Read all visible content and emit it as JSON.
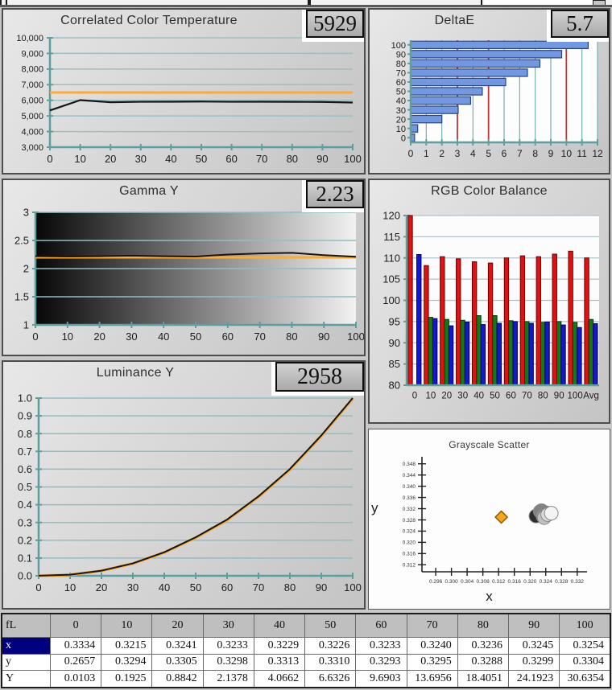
{
  "toolbar": {},
  "chart_data": [
    {
      "id": "cct",
      "type": "line",
      "title": "Correlated Color Temperature",
      "value_box": "5929",
      "x": [
        0,
        10,
        20,
        30,
        40,
        50,
        60,
        70,
        80,
        90,
        100
      ],
      "xticks": [
        0,
        10,
        20,
        30,
        40,
        50,
        60,
        70,
        80,
        90,
        100
      ],
      "xlim": [
        0,
        100
      ],
      "ylim": [
        3000,
        10000
      ],
      "yticks": [
        3000,
        4000,
        5000,
        6000,
        7000,
        8000,
        9000,
        10000
      ],
      "ytick_labels": [
        "3,000",
        "4,000",
        "5,000",
        "6,000",
        "7,000",
        "8,000",
        "9,000",
        "10,000"
      ],
      "grid_color": "#9dbfbf",
      "axis_color": "#5d9e9e",
      "series": [
        {
          "name": "target",
          "color": "#ffab2e",
          "width": 3,
          "values": [
            6500,
            6500,
            6500,
            6500,
            6500,
            6500,
            6500,
            6500,
            6500,
            6500,
            6500
          ]
        },
        {
          "name": "measured",
          "color": "#161616",
          "width": 2.2,
          "values": [
            5350,
            6010,
            5875,
            5905,
            5910,
            5920,
            5905,
            5910,
            5900,
            5895,
            5855
          ]
        }
      ]
    },
    {
      "id": "deltae",
      "type": "hbar",
      "title": "DeltaE",
      "value_box": "5.7",
      "categories": [
        "100",
        "90",
        "80",
        "70",
        "60",
        "50",
        "40",
        "30",
        "20",
        "10",
        "0"
      ],
      "values": [
        11.4,
        9.7,
        8.3,
        7.5,
        6.1,
        4.6,
        3.85,
        3.05,
        2.0,
        0.45,
        0.25
      ],
      "xlim": [
        0,
        12
      ],
      "xticks": [
        0,
        1,
        2,
        3,
        4,
        5,
        6,
        7,
        8,
        9,
        10,
        11,
        12
      ],
      "ref_lines": [
        3,
        5,
        10
      ],
      "ref_color": "#c03636",
      "bar_color": "#7398e2",
      "bar_border": "#2a4480",
      "plot_bg": "#fdfdfd",
      "grid_color": "#76b0b0",
      "axis_color": "#5d9e9e"
    },
    {
      "id": "gamma",
      "type": "line",
      "title": "Gamma Y",
      "value_box": "2.23",
      "x": [
        0,
        10,
        20,
        30,
        40,
        50,
        60,
        70,
        80,
        90,
        100
      ],
      "xticks": [
        0,
        10,
        20,
        30,
        40,
        50,
        60,
        70,
        80,
        90,
        100
      ],
      "xlim": [
        0,
        100
      ],
      "ylim": [
        1,
        3
      ],
      "yticks": [
        1,
        1.5,
        2,
        2.5,
        3
      ],
      "ytick_labels": [
        "1",
        "1.5",
        "2",
        "2.5",
        "3"
      ],
      "grid_color": "#8fc0c0",
      "axis_color": "#5d9e9e",
      "plot_gradient": true,
      "series": [
        {
          "name": "target",
          "color": "#ffab2e",
          "width": 3,
          "values": [
            2.2,
            2.2,
            2.2,
            2.2,
            2.2,
            2.2,
            2.2,
            2.2,
            2.2,
            2.2,
            2.2
          ]
        },
        {
          "name": "measured",
          "color": "#161616",
          "width": 2,
          "values": [
            2.22,
            2.215,
            2.22,
            2.23,
            2.22,
            2.215,
            2.25,
            2.27,
            2.28,
            2.24,
            2.21
          ]
        }
      ]
    },
    {
      "id": "rgb",
      "type": "groupedbar",
      "title": "RGB Color Balance",
      "categories": [
        "0",
        "10",
        "20",
        "30",
        "40",
        "50",
        "60",
        "70",
        "80",
        "90",
        "100",
        "Avg"
      ],
      "ylim": [
        80,
        120
      ],
      "yticks": [
        80,
        85,
        90,
        95,
        100,
        105,
        110,
        115,
        120
      ],
      "grid_color": "#aec4cd",
      "axis_color": "#5d9e9e",
      "plot_bg": "#fcfcfc",
      "series": [
        {
          "name": "red",
          "color": "#dd1212",
          "border": "#6e0000",
          "values": [
            120,
            108.2,
            110.3,
            109.8,
            109.1,
            108.8,
            110.0,
            110.5,
            110.3,
            110.9,
            111.6,
            110.0
          ]
        },
        {
          "name": "green",
          "color": "#177817",
          "border": "#063806",
          "values": [
            null,
            96.0,
            95.5,
            95.3,
            96.4,
            96.4,
            95.2,
            95.0,
            94.8,
            95.0,
            94.8,
            95.5
          ]
        },
        {
          "name": "blue",
          "color": "#1517ce",
          "border": "#000060",
          "values": [
            110.8,
            95.7,
            94.0,
            94.9,
            94.3,
            94.6,
            95.0,
            94.6,
            94.9,
            94.2,
            93.6,
            94.5
          ]
        }
      ]
    },
    {
      "id": "luminance",
      "type": "line",
      "title": "Luminance Y",
      "value_box": "2958",
      "x": [
        0,
        10,
        20,
        30,
        40,
        50,
        60,
        70,
        80,
        90,
        100
      ],
      "xticks": [
        0,
        10,
        20,
        30,
        40,
        50,
        60,
        70,
        80,
        90,
        100
      ],
      "xlim": [
        0,
        100
      ],
      "ylim": [
        0,
        1
      ],
      "yticks": [
        0,
        0.1,
        0.2,
        0.3,
        0.4,
        0.5,
        0.6,
        0.7,
        0.8,
        0.9,
        1.0
      ],
      "ytick_labels": [
        "0.0",
        "0.1",
        "0.2",
        "0.3",
        "0.4",
        "0.5",
        "0.6",
        "0.7",
        "0.8",
        "0.9",
        "1.0"
      ],
      "grid_color": "#8fc0c0",
      "axis_color": "#5d9e9e",
      "series": [
        {
          "name": "target",
          "color": "#ffab2e",
          "width": 3.5,
          "values": [
            0.0,
            0.0058,
            0.028,
            0.069,
            0.131,
            0.214,
            0.313,
            0.444,
            0.597,
            0.786,
            0.996
          ]
        },
        {
          "name": "measured",
          "color": "#161616",
          "width": 2,
          "values": [
            0.0003,
            0.0063,
            0.0289,
            0.0698,
            0.1327,
            0.2165,
            0.3163,
            0.447,
            0.6008,
            0.7897,
            1.0
          ]
        }
      ]
    },
    {
      "id": "scatter",
      "type": "scatter",
      "title": "Grayscale Scatter",
      "xlabel": "x",
      "ylabel": "y",
      "xlim": [
        0.2925,
        0.3345
      ],
      "ylim": [
        0.3095,
        0.3505
      ],
      "xticks": [
        0.296,
        0.3,
        0.304,
        0.308,
        0.312,
        0.316,
        0.32,
        0.324,
        0.328,
        0.332
      ],
      "xtick_labels": [
        "0.296",
        "0.300",
        "0.304",
        "0.308",
        "0.312",
        "0.316",
        "0.320",
        "0.324",
        "0.328",
        "0.332"
      ],
      "yticks": [
        0.312,
        0.316,
        0.32,
        0.324,
        0.328,
        0.332,
        0.336,
        0.34,
        0.344,
        0.348
      ],
      "ytick_labels": [
        "0.312",
        "0.316",
        "0.320",
        "0.324",
        "0.328",
        "0.332",
        "0.336",
        "0.340",
        "0.344",
        "0.348"
      ],
      "axis_color": "#222222",
      "reference": {
        "x": 0.3127,
        "y": 0.329,
        "color": "#f7a51c",
        "border": "#8a5a00"
      },
      "points": [
        {
          "x": 0.3334,
          "y": 0.2657,
          "shade": "#000000"
        },
        {
          "x": 0.3215,
          "y": 0.3294,
          "shade": "#2e2e2e"
        },
        {
          "x": 0.3241,
          "y": 0.3305,
          "shade": "#474747"
        },
        {
          "x": 0.3233,
          "y": 0.3298,
          "shade": "#5a5a5a"
        },
        {
          "x": 0.3229,
          "y": 0.3313,
          "shade": "#6e6e6e"
        },
        {
          "x": 0.3226,
          "y": 0.331,
          "shade": "#828282"
        },
        {
          "x": 0.3233,
          "y": 0.3293,
          "shade": "#969696"
        },
        {
          "x": 0.324,
          "y": 0.3295,
          "shade": "#ababab"
        },
        {
          "x": 0.3236,
          "y": 0.3288,
          "shade": "#c0c0c0"
        },
        {
          "x": 0.3245,
          "y": 0.3299,
          "shade": "#dcdcdc"
        },
        {
          "x": 0.3254,
          "y": 0.3304,
          "shade": "#f4f4f4"
        }
      ]
    }
  ],
  "table": {
    "corner_label": "fL",
    "columns": [
      "0",
      "10",
      "20",
      "30",
      "40",
      "50",
      "60",
      "70",
      "80",
      "90",
      "100"
    ],
    "rows": [
      {
        "label": "x",
        "selected": true,
        "values": [
          "0.3334",
          "0.3215",
          "0.3241",
          "0.3233",
          "0.3229",
          "0.3226",
          "0.3233",
          "0.3240",
          "0.3236",
          "0.3245",
          "0.3254"
        ]
      },
      {
        "label": "y",
        "selected": false,
        "values": [
          "0.2657",
          "0.3294",
          "0.3305",
          "0.3298",
          "0.3313",
          "0.3310",
          "0.3293",
          "0.3295",
          "0.3288",
          "0.3299",
          "0.3304"
        ]
      },
      {
        "label": "Y",
        "selected": false,
        "values": [
          "0.0103",
          "0.1925",
          "0.8842",
          "2.1378",
          "4.0662",
          "6.6326",
          "9.6903",
          "13.6956",
          "18.4051",
          "24.1923",
          "30.6354"
        ]
      }
    ]
  }
}
